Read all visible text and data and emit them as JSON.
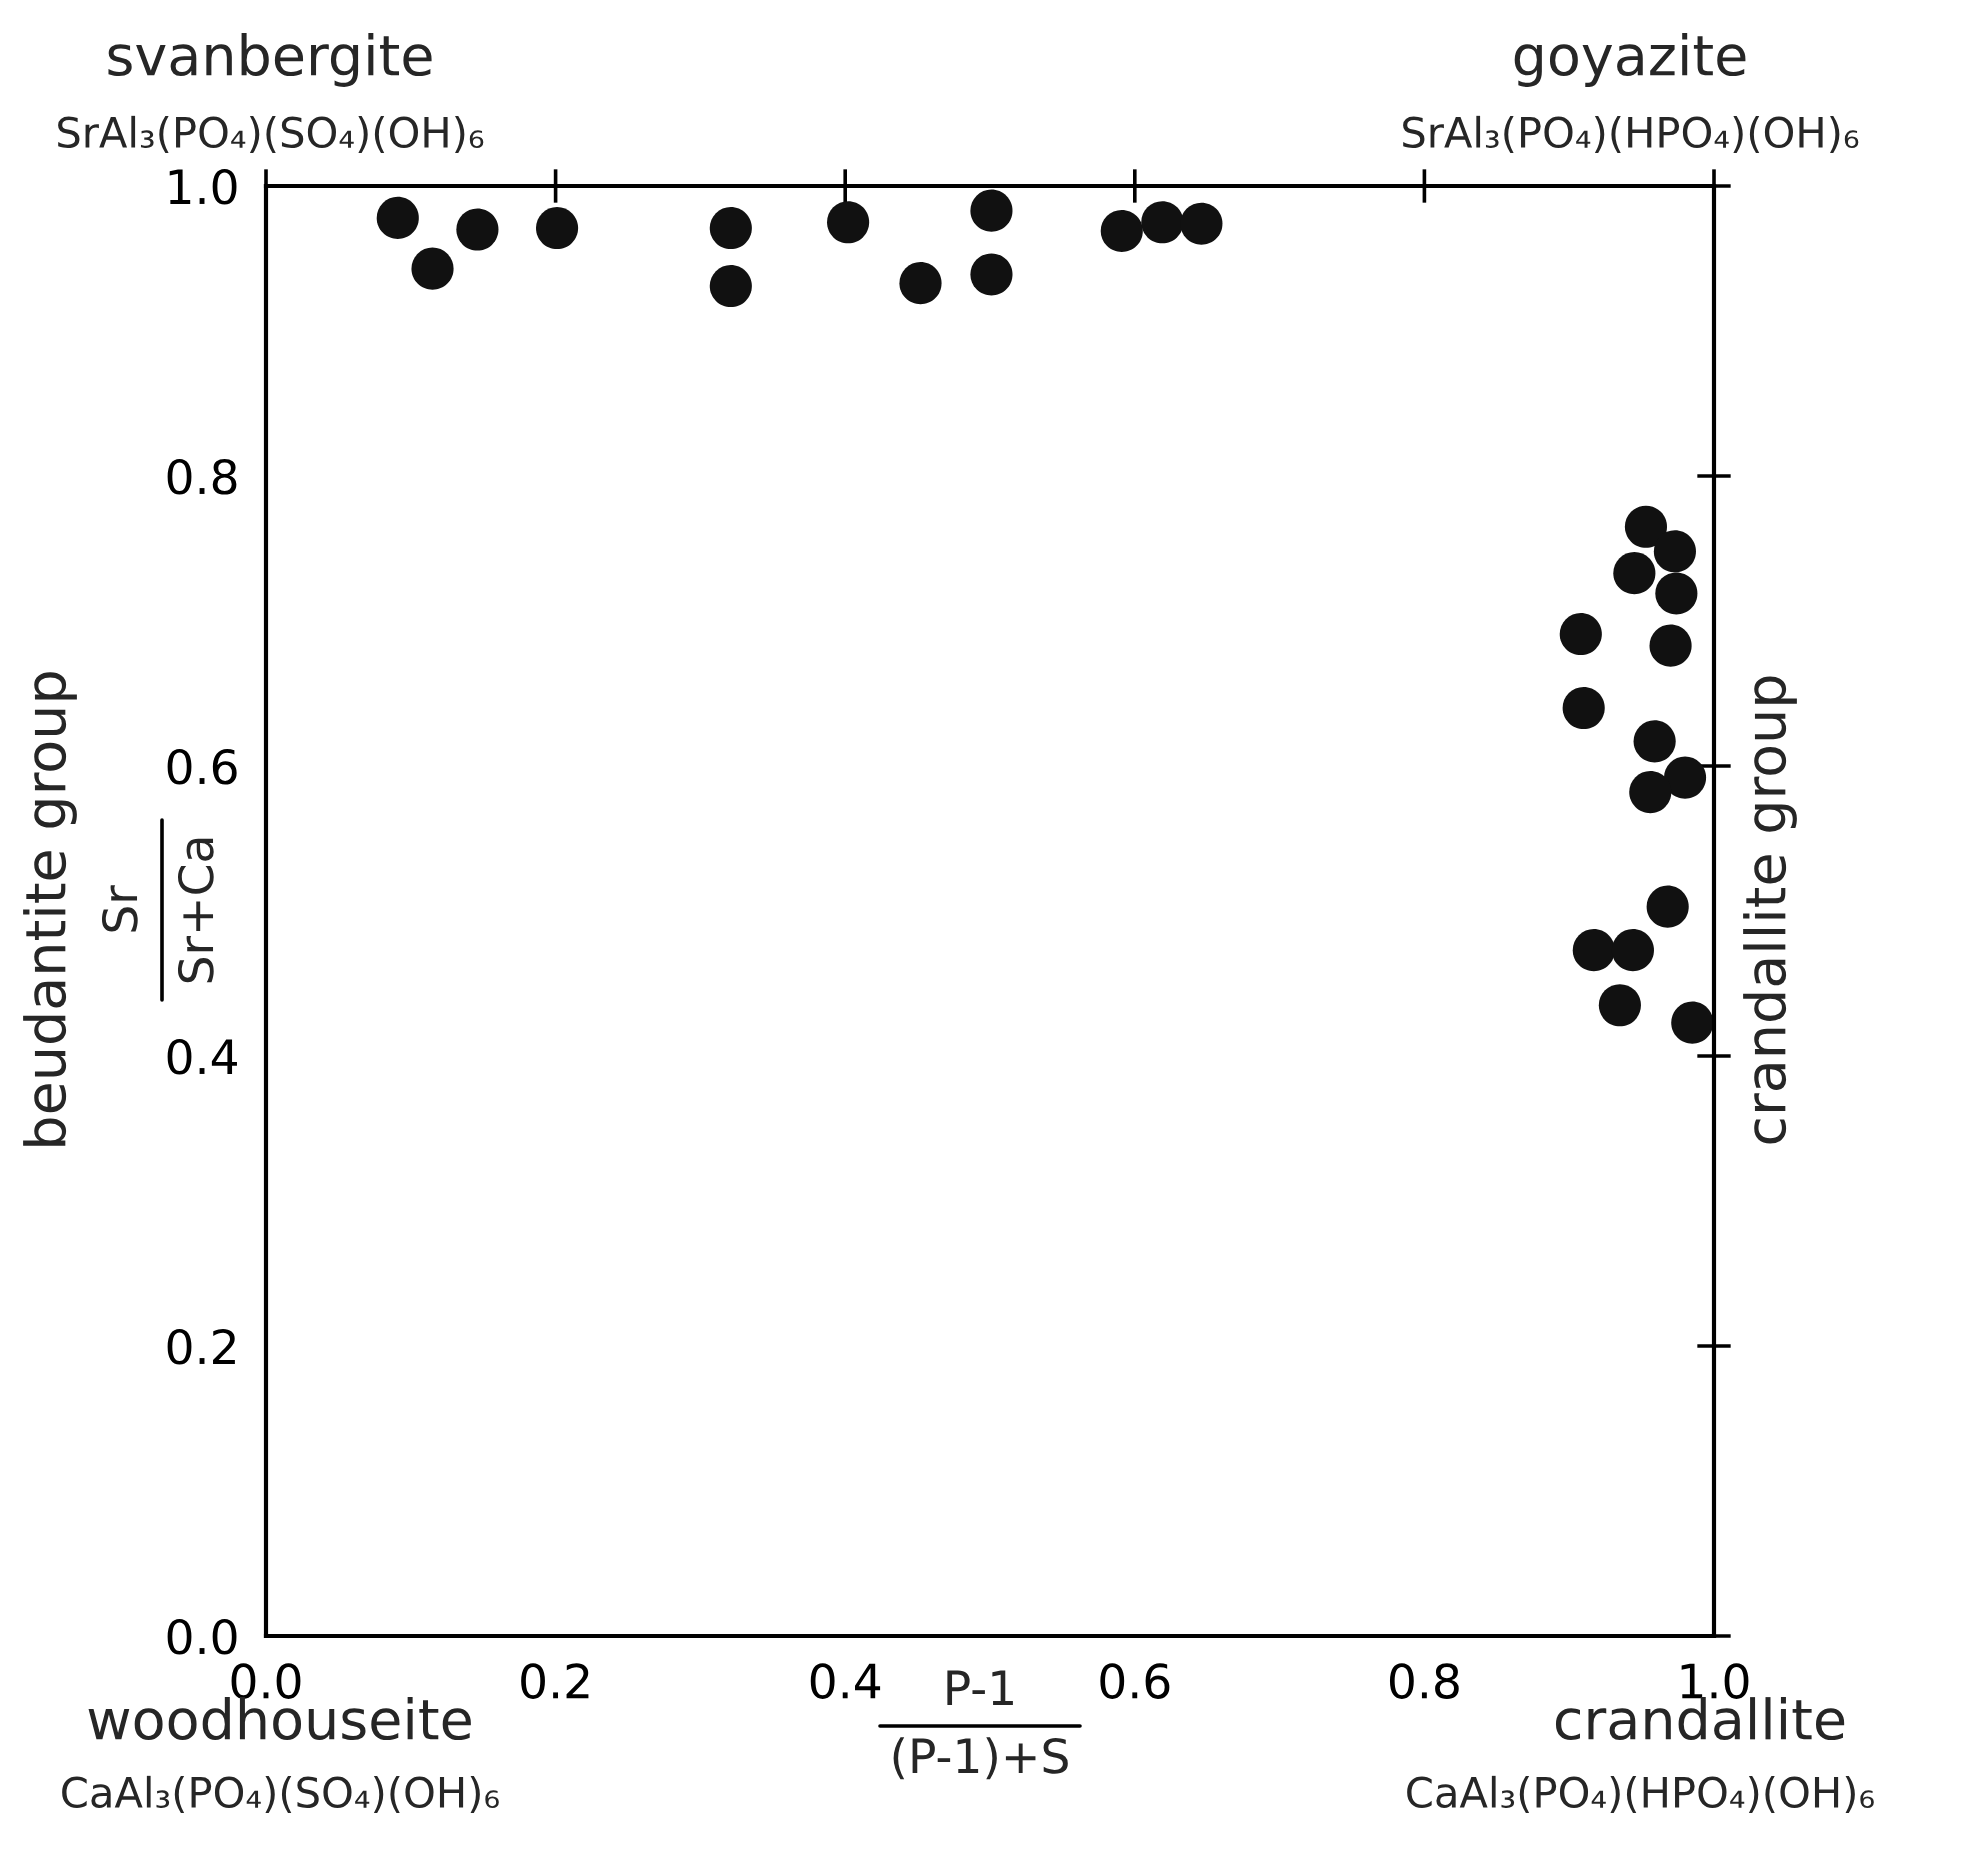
{
  "chart_data": {
    "type": "scatter",
    "ylabel": "beudantite group",
    "y2label": "crandallite group",
    "x": [
      0.091,
      0.115,
      0.146,
      0.201,
      0.321,
      0.321,
      0.402,
      0.452,
      0.501,
      0.501,
      0.591,
      0.619,
      0.646,
      0.953,
      0.973,
      0.945,
      0.974,
      0.908,
      0.97,
      0.91,
      0.959,
      0.98,
      0.956,
      0.968,
      0.917,
      0.944,
      0.935,
      0.985
    ],
    "series": [
      {
        "color": "#111111",
        "values": [
          0.978,
          0.943,
          0.97,
          0.971,
          0.971,
          0.931,
          0.975,
          0.933,
          0.983,
          0.939,
          0.969,
          0.975,
          0.974,
          0.765,
          0.748,
          0.733,
          0.719,
          0.691,
          0.683,
          0.64,
          0.617,
          0.592,
          0.582,
          0.503,
          0.473,
          0.473,
          0.435,
          0.423
        ]
      }
    ],
    "marker": "circle",
    "grid": false,
    "legend": false,
    "xlim": [
      0,
      1.0
    ],
    "xticks": [
      {
        "value": 0,
        "label": "0.0"
      },
      0.2,
      0.4,
      0.6,
      0.8,
      {
        "value": 1.0,
        "label": "1.0"
      }
    ],
    "ylim": [
      0,
      1.0
    ],
    "yticks": [
      {
        "value": 0,
        "label": "0.0"
      },
      0.2,
      0.4,
      0.6,
      0.8,
      {
        "value": 1.0,
        "label": "1.0"
      }
    ],
    "annotations": [
      "svanbergite",
      "SrAl₃(PO₄)(SO₄)(OH)₆",
      "goyazite",
      "SrAl₃(PO₄)(HPO₄)(OH)₆",
      "woodhouseite",
      "CaAl₃(PO₄)(SO₄)(OH)₆",
      "crandallite",
      "CaAl₃(PO₄)(HPO₄)(OH)₆",
      "P-1",
      "(P-1)+S",
      "Sr",
      "Sr+Ca"
    ]
  }
}
